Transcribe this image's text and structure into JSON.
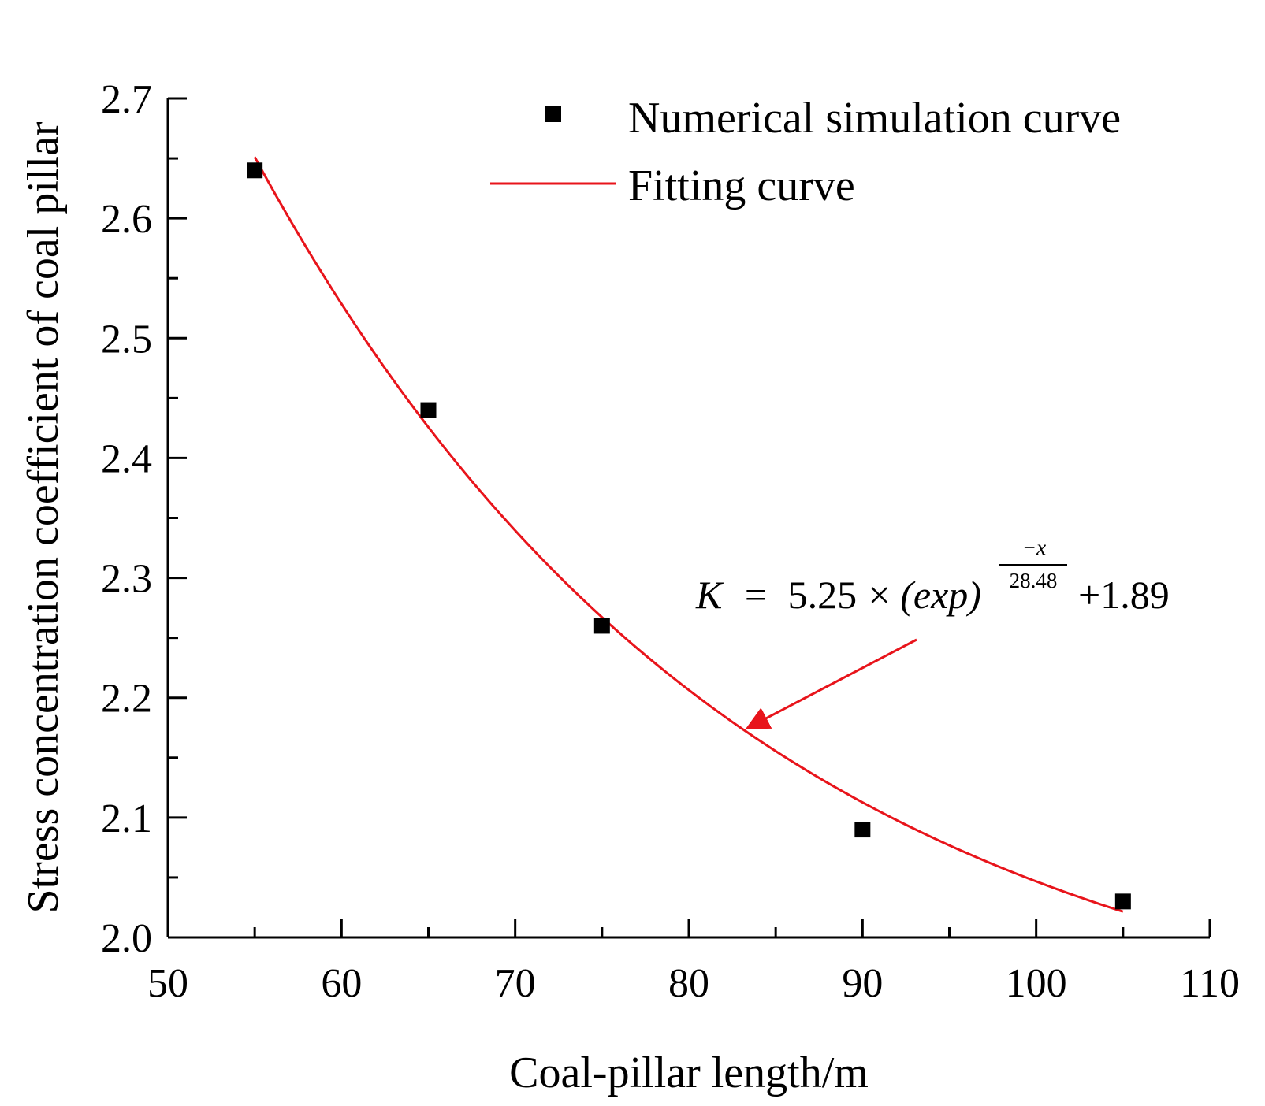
{
  "chart_data": {
    "type": "scatter",
    "title": "",
    "xlabel": "Coal-pillar length/m",
    "ylabel": "Stress concentration coefficient of coal pillar",
    "xlim": [
      50,
      110
    ],
    "ylim": [
      2.0,
      2.7
    ],
    "xticks": [
      50,
      60,
      70,
      80,
      90,
      100,
      110
    ],
    "xtick_labels": [
      "50",
      "60",
      "70",
      "80",
      "90",
      "100",
      "110"
    ],
    "yticks": [
      2.0,
      2.1,
      2.2,
      2.3,
      2.4,
      2.5,
      2.6,
      2.7
    ],
    "ytick_labels": [
      "2.0",
      "2.1",
      "2.2",
      "2.3",
      "2.4",
      "2.5",
      "2.6",
      "2.7"
    ],
    "grid": false,
    "legend_position": "top-right",
    "series": [
      {
        "name": "Numerical simulation curve",
        "kind": "scatter",
        "marker": "square",
        "color": "#000000",
        "x": [
          55,
          65,
          75,
          90,
          105
        ],
        "y": [
          2.64,
          2.44,
          2.26,
          2.09,
          2.03
        ]
      },
      {
        "name": "Fitting curve",
        "kind": "line",
        "color": "#e8141b",
        "formula": {
          "a": 5.25,
          "t": 28.48,
          "c": 1.89
        },
        "x_range": [
          55,
          105
        ]
      }
    ],
    "annotation": {
      "lhs": "K",
      "equals": "=",
      "coef": "5.25",
      "times": "×",
      "base": "(exp)",
      "exp_numerator": "−x",
      "exp_denominator": "28.48",
      "plus_const": "+1.89",
      "arrow_target_x": 83.2,
      "arrow_color": "#e8141b"
    }
  }
}
